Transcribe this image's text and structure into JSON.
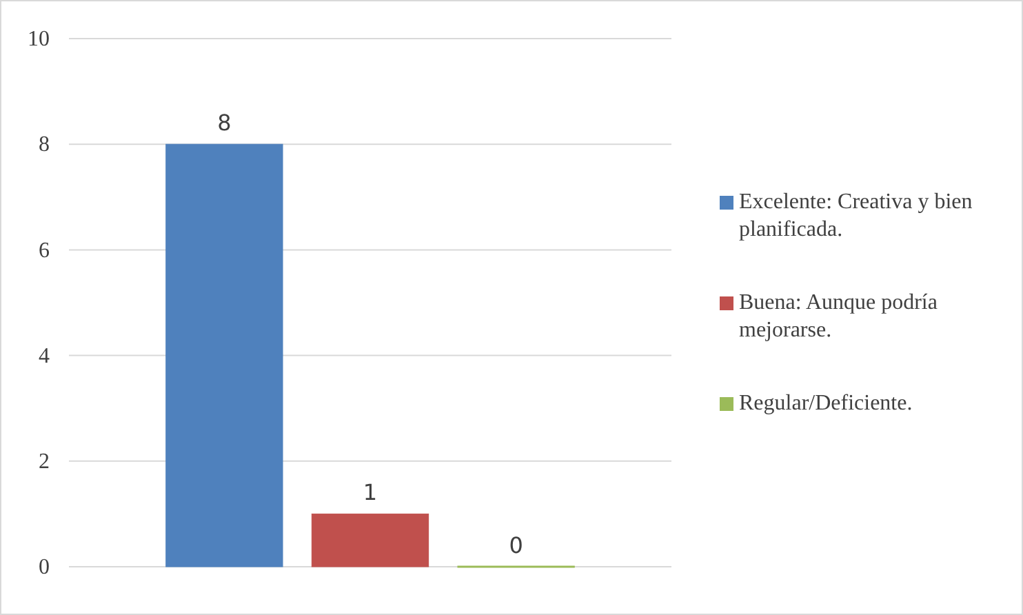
{
  "chart_data": {
    "type": "bar",
    "categories": [
      null
    ],
    "series": [
      {
        "name": "Excelente: Creativa y bien planificada.",
        "color": "#4f81bd",
        "values": [
          8
        ]
      },
      {
        "name": "Buena: Aunque podría mejorarse.",
        "color": "#c0504d",
        "values": [
          1
        ]
      },
      {
        "name": "Regular/Deficiente.",
        "color": "#9bbb59",
        "values": [
          0
        ]
      }
    ],
    "ylim": [
      0,
      10
    ],
    "yticks": [
      0,
      2,
      4,
      6,
      8,
      10
    ],
    "grid": "y",
    "legend": "right",
    "data_labels": true
  }
}
